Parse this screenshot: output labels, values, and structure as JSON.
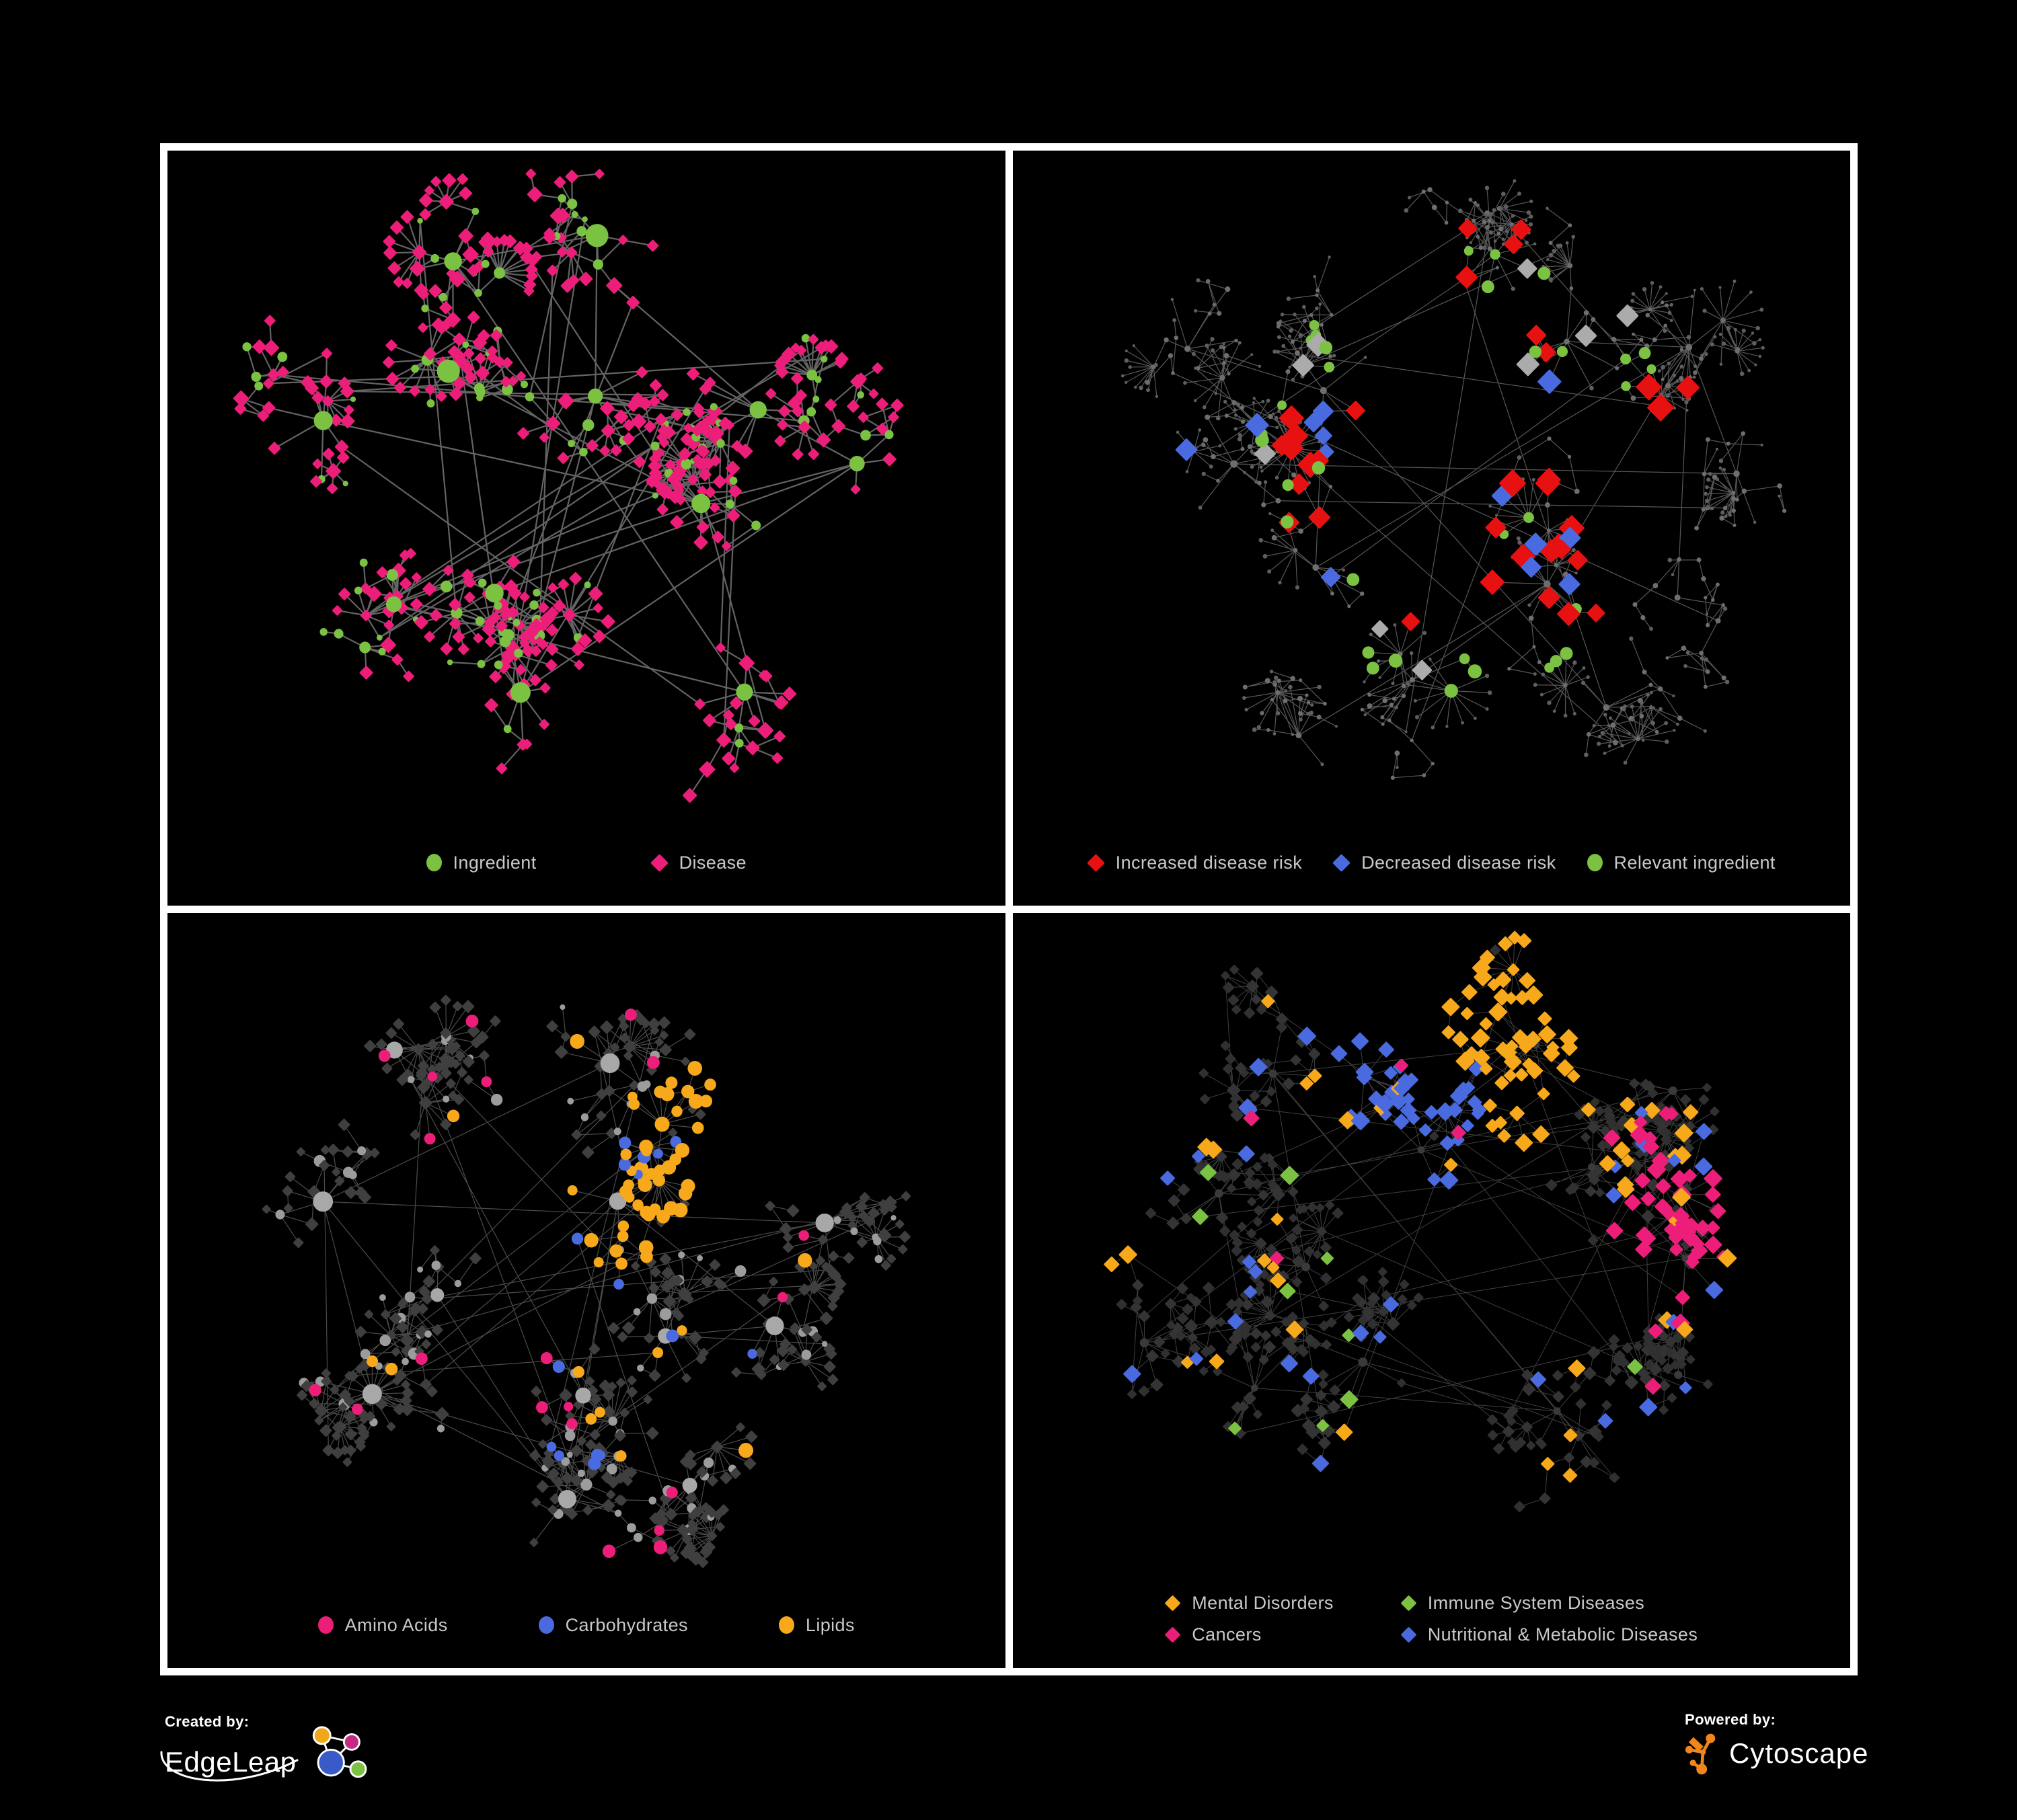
{
  "page": {
    "background": "#000000",
    "frame_border": "#FFFFFF"
  },
  "colors": {
    "green": "#7CC242",
    "pink": "#EC1E79",
    "red": "#E81111",
    "blue": "#4A6BDF",
    "orange": "#F7A81B",
    "silver": "#ABABAB",
    "legend_text": "#C9C9C9"
  },
  "panels": [
    {
      "id": "ingredient-disease",
      "legend_layout": "row",
      "legend_gap": 170,
      "legend_diamond_small": false,
      "legend": [
        {
          "shape": "circle",
          "color": "#7CC242",
          "label": "Ingredient"
        },
        {
          "shape": "diamond",
          "color": "#EC1E79",
          "label": "Disease"
        }
      ],
      "network": {
        "seed": 7,
        "clusters": 12,
        "nodes": 300,
        "fans": 24,
        "extra_edges": 36,
        "chain_bias": 0.34,
        "hub_pow": 2.0,
        "edge": {
          "color": "#6E6E6E",
          "width": 2.2,
          "opacity": 0.9
        },
        "hub": {
          "shape": "circle",
          "color": "#7CC242",
          "size": [
            11,
            17
          ]
        },
        "interior": [
          {
            "shape": "circle",
            "color": "#7CC242",
            "size": [
              5,
              9
            ],
            "weight": 0.42
          },
          {
            "shape": "diamond",
            "color": "#EC1E79",
            "size": [
              6,
              9
            ],
            "weight": 0.58
          }
        ],
        "leaf": [
          {
            "shape": "diamond",
            "color": "#EC1E79",
            "size": [
              5.5,
              8
            ],
            "weight": 0.85
          },
          {
            "shape": "circle",
            "color": "#7CC242",
            "size": [
              4,
              7
            ],
            "weight": 0.15
          }
        ],
        "highlights": []
      }
    },
    {
      "id": "disease-risk",
      "legend_layout": "row",
      "legend_gap": 46,
      "legend_diamond_small": false,
      "legend": [
        {
          "shape": "diamond",
          "color": "#E81111",
          "label": "Increased disease risk"
        },
        {
          "shape": "diamond",
          "color": "#4A6BDF",
          "label": "Decreased disease risk"
        },
        {
          "shape": "circle",
          "color": "#7CC242",
          "label": "Relevant ingredient"
        }
      ],
      "network": {
        "seed": 1234,
        "clusters": 13,
        "nodes": 380,
        "fans": 30,
        "extra_edges": 12,
        "chain_bias": 0.5,
        "hub_pow": 2.6,
        "edge": {
          "color": "#5C5C5C",
          "width": 1.2,
          "opacity": 0.95
        },
        "hub": {
          "shape": "circle",
          "color": "#6E6E6E",
          "size": [
            3.5,
            5.5
          ]
        },
        "interior": [
          {
            "shape": "circle",
            "color": "#6E6E6E",
            "size": [
              2.4,
              4
            ],
            "weight": 1
          }
        ],
        "leaf": [
          {
            "shape": "circle",
            "color": "#5F5F5F",
            "size": [
              2,
              3.4
            ],
            "weight": 1
          }
        ],
        "highlights": [
          {
            "shape": "diamond",
            "color": "#E81111",
            "size": 12,
            "count": 30,
            "zone": 0.55
          },
          {
            "shape": "diamond",
            "color": "#4A6BDF",
            "size": 11,
            "count": 11,
            "zone": 0.5
          },
          {
            "shape": "diamond",
            "color": "#ABABAB",
            "size": 11,
            "count": 9,
            "zone": 0.6
          },
          {
            "shape": "circle",
            "color": "#7CC242",
            "size": 8.5,
            "count": 34,
            "zone": 0.6
          },
          {
            "shape": "diamond",
            "color": "#E81111",
            "size": 12,
            "count": 4,
            "zone": 1.0
          },
          {
            "shape": "diamond",
            "color": "#4A6BDF",
            "size": 11,
            "count": 2,
            "zone": 1.0
          }
        ]
      }
    },
    {
      "id": "nutrient-classes",
      "legend_layout": "row",
      "legend_gap": 135,
      "legend_diamond_small": false,
      "legend": [
        {
          "shape": "circle",
          "color": "#EC1E79",
          "label": "Amino Acids"
        },
        {
          "shape": "circle",
          "color": "#4A6BDF",
          "label": "Carbohydrates"
        },
        {
          "shape": "circle",
          "color": "#F7A81B",
          "label": "Lipids"
        }
      ],
      "network": {
        "seed": 99,
        "clusters": 12,
        "nodes": 320,
        "fans": 26,
        "extra_edges": 30,
        "chain_bias": 0.36,
        "hub_pow": 2.0,
        "edge": {
          "color": "#969696",
          "width": 1.2,
          "opacity": 0.5
        },
        "hub": {
          "shape": "circle",
          "color": "#A8A8A8",
          "size": [
            10,
            15
          ]
        },
        "interior": [
          {
            "shape": "circle",
            "color": "#9C9C9C",
            "size": [
              5,
              9
            ],
            "weight": 0.5
          },
          {
            "shape": "diamond",
            "color": "#3F3F3F",
            "size": [
              5.5,
              7.5
            ],
            "weight": 0.5
          }
        ],
        "leaf": [
          {
            "shape": "diamond",
            "color": "#3F3F3F",
            "size": [
              5,
              7
            ],
            "weight": 0.92
          },
          {
            "shape": "circle",
            "color": "#9C9C9C",
            "size": [
              4,
              6
            ],
            "weight": 0.08
          }
        ],
        "highlights": [
          {
            "shape": "circle",
            "color": "#F7A81B",
            "size": 9,
            "count": 60,
            "zone": 0.75,
            "cluster": 2
          },
          {
            "shape": "circle",
            "color": "#4A6BDF",
            "size": 8.5,
            "count": 16,
            "zone": 0.55,
            "cluster": 2
          },
          {
            "shape": "circle",
            "color": "#EC1E79",
            "size": 8.5,
            "count": 20,
            "zone": 1.0
          }
        ]
      }
    },
    {
      "id": "disease-classes",
      "legend_layout": "grid",
      "legend_gap": 100,
      "legend_diamond_small": true,
      "legend": [
        {
          "shape": "diamond",
          "color": "#F7A81B",
          "label": "Mental Disorders"
        },
        {
          "shape": "diamond",
          "color": "#7CC242",
          "label": "Immune System Diseases"
        },
        {
          "shape": "diamond",
          "color": "#EC1E79",
          "label": "Cancers"
        },
        {
          "shape": "diamond",
          "color": "#4A6BDF",
          "label": "Nutritional & Metabolic Diseases"
        }
      ],
      "network": {
        "seed": 2024,
        "clusters": 13,
        "nodes": 400,
        "fans": 30,
        "extra_edges": 40,
        "chain_bias": 0.4,
        "hub_pow": 2.2,
        "edge": {
          "color": "#A5A5A5",
          "width": 1.0,
          "opacity": 0.38
        },
        "hub": {
          "shape": "circle",
          "color": "#3A3A3A",
          "size": [
            5,
            7
          ]
        },
        "interior": [
          {
            "shape": "diamond",
            "color": "#343434",
            "size": [
              5.5,
              7.5
            ],
            "weight": 1
          }
        ],
        "leaf": [
          {
            "shape": "diamond",
            "color": "#303030",
            "size": [
              5,
              6.5
            ],
            "weight": 1
          }
        ],
        "highlights": [
          {
            "shape": "diamond",
            "color": "#F7A81B",
            "size": 8.5,
            "count": 95,
            "zone": 0.95,
            "cluster": 0
          },
          {
            "shape": "diamond",
            "color": "#EC1E79",
            "size": 8.5,
            "count": 55,
            "zone": 0.85,
            "cluster": 5
          },
          {
            "shape": "diamond",
            "color": "#4A6BDF",
            "size": 8.5,
            "count": 70,
            "zone": 1.0,
            "cluster": 8
          },
          {
            "shape": "diamond",
            "color": "#7CC242",
            "size": 8.5,
            "count": 10,
            "zone": 1.0
          }
        ]
      }
    }
  ],
  "footer": {
    "created_by": {
      "label": "Created by:",
      "brand": "EdgeLeap",
      "node_colors": [
        "#F2A71B",
        "#C52A83",
        "#3A5BC7",
        "#7CC242"
      ]
    },
    "powered_by": {
      "label": "Powered by:",
      "brand": "Cytoscape",
      "logo_color": "#F0861C"
    }
  }
}
